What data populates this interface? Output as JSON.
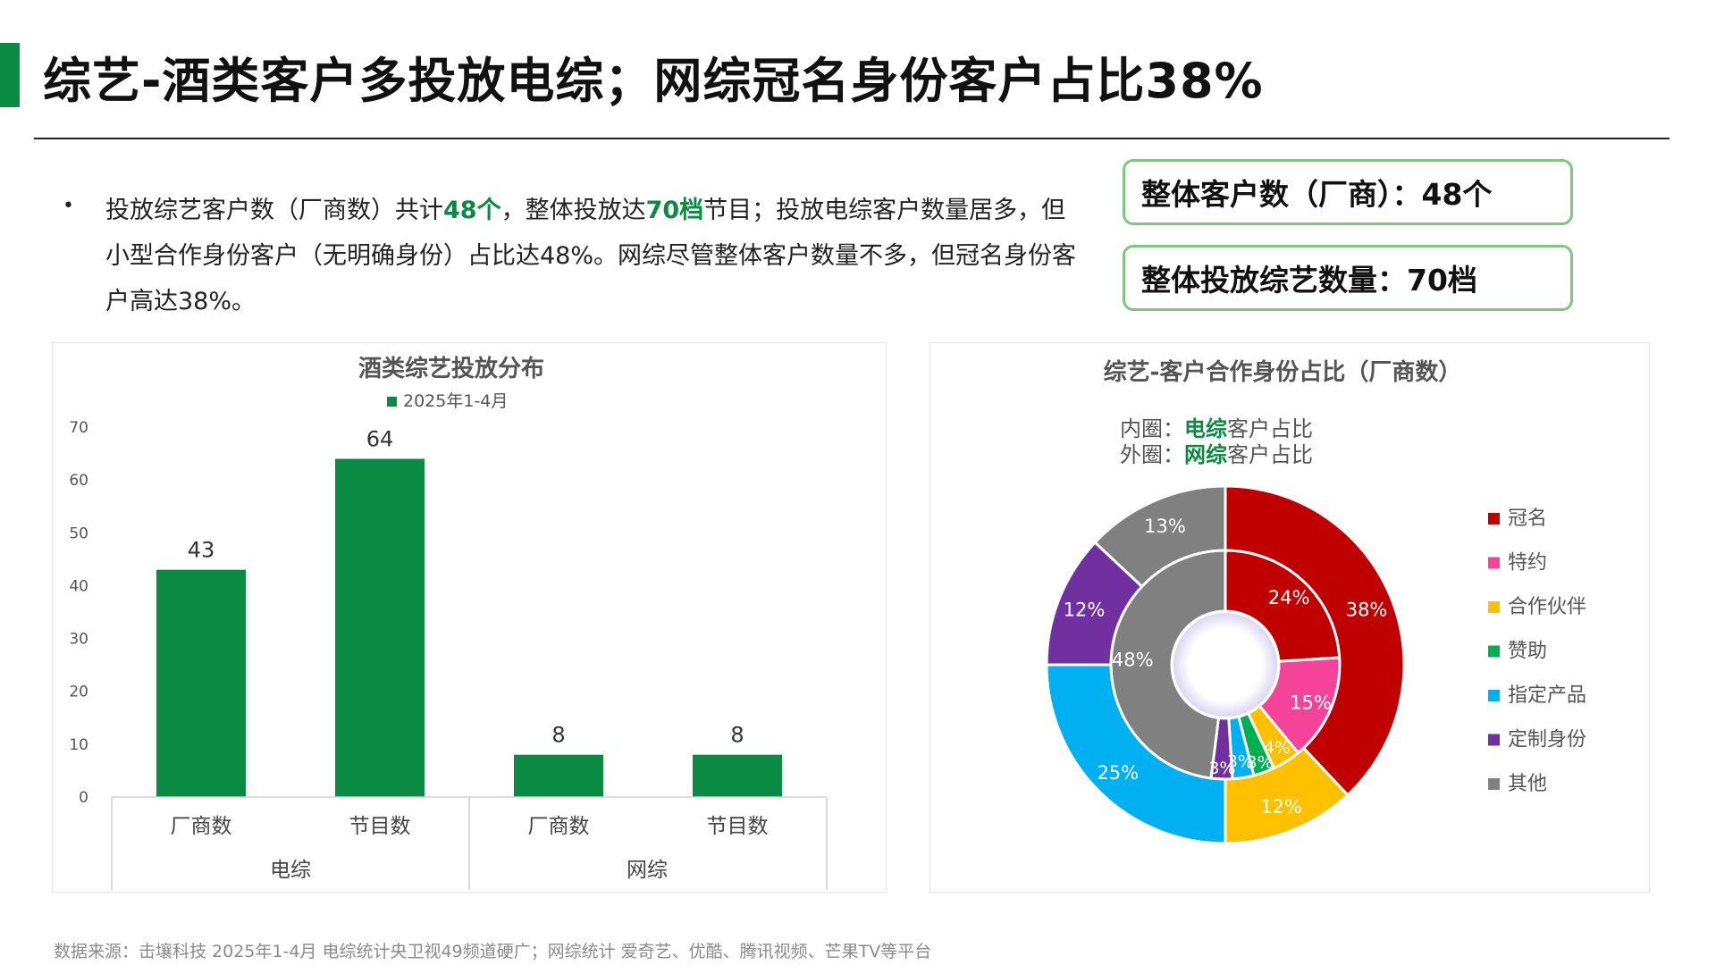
{
  "header": {
    "title": "综艺-酒类客户多投放电综；网综冠名身份客户占比38%"
  },
  "summary": {
    "bullet": "•",
    "p1": "投放综艺客户数（厂商数）共计",
    "h1": "48个",
    "p2": "，整体投放达",
    "h2": "70档",
    "p3": "节目；投放电综客户数量居多，但小型合作身份客户（无明确身份）占比达48%。网综尽管整体客户数量不多，但冠名身份客户高达38%。"
  },
  "kpis": {
    "customers": "整体客户数（厂商）：48个",
    "shows": "整体投放综艺数量：70档"
  },
  "colors": {
    "brand_green": "#0b8a43",
    "bar": "#0b8a43",
    "axis_text": "#555555"
  },
  "bar_chart": {
    "title": "酒类综艺投放分布",
    "legend": "2025年1-4月",
    "groups": [
      "电综",
      "网综"
    ]
  },
  "pie_chart": {
    "title": "综艺-客户合作身份占比（厂商数）",
    "inner_prefix": "内圈：",
    "inner_hl": "电综",
    "inner_suffix": "客户占比",
    "outer_prefix": "外圈：",
    "outer_hl": "网综",
    "outer_suffix": "客户占比"
  },
  "chart_data": [
    {
      "type": "bar",
      "title": "酒类综艺投放分布",
      "categories": [
        "厂商数",
        "节目数",
        "厂商数",
        "节目数"
      ],
      "group_labels": [
        "电综",
        "电综",
        "网综",
        "网综"
      ],
      "series": [
        {
          "name": "2025年1-4月",
          "values": [
            43,
            64,
            8,
            8
          ],
          "color": "#0b8a43"
        }
      ],
      "ylim": [
        0,
        70
      ],
      "yticks": [
        0,
        10,
        20,
        30,
        40,
        50,
        60,
        70
      ],
      "grid": false,
      "legend": "top"
    },
    {
      "type": "pie",
      "title": "综艺-客户合作身份占比（厂商数）",
      "donut": true,
      "labels": [
        "冠名",
        "特约",
        "合作伙伴",
        "赞助",
        "指定产品",
        "定制身份",
        "其他"
      ],
      "colors": [
        "#c00000",
        "#f5439a",
        "#ffc000",
        "#00b050",
        "#00b0f0",
        "#7030a0",
        "#808080"
      ],
      "series": [
        {
          "name": "电综",
          "ring": "inner",
          "values": [
            24,
            15,
            4,
            3,
            3,
            3,
            48
          ]
        },
        {
          "name": "网综",
          "ring": "outer",
          "values": [
            38,
            0,
            12,
            0,
            25,
            12,
            13
          ]
        }
      ],
      "legend": "right"
    }
  ],
  "footer": {
    "source": "数据来源：击壤科技 2025年1-4月 电综统计央卫视49频道硬广；网综统计 爱奇艺、优酷、腾讯视频、芒果TV等平台"
  }
}
